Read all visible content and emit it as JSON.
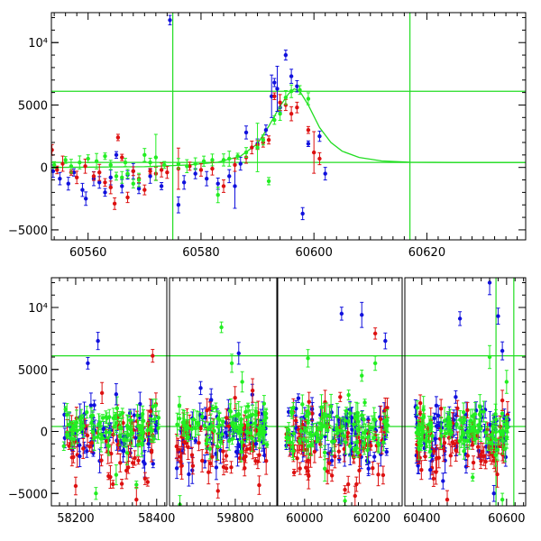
{
  "chart_data": [
    {
      "type": "scatter",
      "panel": "top",
      "xlim": [
        60553.5,
        60637.5
      ],
      "ylim": [
        -5800,
        12400
      ],
      "x_ticks": [
        60560,
        60580,
        60600,
        60620
      ],
      "x_tick_labels": [
        "60560",
        "60580",
        "60600",
        "60620"
      ],
      "y_ticks": [
        -5000,
        0,
        5000,
        10000
      ],
      "y_tick_labels": [
        "−5000",
        "0",
        "5000",
        "10⁴"
      ],
      "reference_lines": {
        "horizontal": [
          6100,
          400
        ],
        "vertical": [
          60575,
          60617
        ]
      },
      "model_curve": {
        "color": "#22dd22",
        "points": [
          [
            60553.5,
            0
          ],
          [
            60570,
            60
          ],
          [
            60578,
            200
          ],
          [
            60583,
            420
          ],
          [
            60587,
            900
          ],
          [
            60590,
            1900
          ],
          [
            60592,
            3300
          ],
          [
            60594,
            4900
          ],
          [
            60595.5,
            5900
          ],
          [
            60596.5,
            6300
          ],
          [
            60597.5,
            6100
          ],
          [
            60599,
            5000
          ],
          [
            60601,
            3200
          ],
          [
            60603,
            2000
          ],
          [
            60605,
            1300
          ],
          [
            60608,
            800
          ],
          [
            60612,
            520
          ],
          [
            60617,
            420
          ],
          [
            60625,
            400
          ],
          [
            60637.5,
            400
          ]
        ]
      },
      "series": [
        {
          "color": "#1010dd",
          "points": [
            [
              60553.8,
              -300
            ],
            [
              60555,
              -900
            ],
            [
              60556.5,
              -1300
            ],
            [
              60557.5,
              -400
            ],
            [
              60559,
              -1800
            ],
            [
              60559.6,
              -2500
            ],
            [
              60561,
              -900
            ],
            [
              60562,
              -1200
            ],
            [
              60563,
              -2000
            ],
            [
              60564,
              -800
            ],
            [
              60565,
              1000
            ],
            [
              60566,
              -1500
            ],
            [
              60567,
              -600
            ],
            [
              60568,
              -300
            ],
            [
              60569,
              -1700
            ],
            [
              60571,
              -700
            ],
            [
              60573,
              -1500
            ],
            [
              60574.5,
              11800
            ],
            [
              60576,
              -3000
            ],
            [
              60577,
              -1200
            ],
            [
              60579,
              -500
            ],
            [
              60581,
              -900
            ],
            [
              60583,
              -1300
            ],
            [
              60585,
              -700
            ],
            [
              60586,
              -1500
            ],
            [
              60587,
              300
            ],
            [
              60588,
              2800
            ],
            [
              60590,
              1900
            ],
            [
              60591.5,
              3000
            ],
            [
              60592.5,
              5700
            ],
            [
              60593,
              6800
            ],
            [
              60593.5,
              6300
            ],
            [
              60594,
              4800
            ],
            [
              60595,
              9000
            ],
            [
              60596,
              7300
            ],
            [
              60597,
              6500
            ],
            [
              60598,
              -3700
            ],
            [
              60599,
              1900
            ],
            [
              60601,
              2500
            ],
            [
              60602,
              -500
            ]
          ]
        },
        {
          "color": "#dd1010",
          "points": [
            [
              60553.6,
              1400
            ],
            [
              60554.5,
              -200
            ],
            [
              60555.5,
              300
            ],
            [
              60557,
              -400
            ],
            [
              60558,
              -800
            ],
            [
              60559.5,
              100
            ],
            [
              60561,
              -700
            ],
            [
              60562,
              -400
            ],
            [
              60563,
              -1200
            ],
            [
              60564,
              -1600
            ],
            [
              60564.7,
              -2900
            ],
            [
              60565.3,
              2400
            ],
            [
              60566,
              800
            ],
            [
              60567,
              -2400
            ],
            [
              60568,
              -300
            ],
            [
              60569,
              -900
            ],
            [
              60570,
              -1800
            ],
            [
              60571,
              -300
            ],
            [
              60572,
              -500
            ],
            [
              60573,
              -200
            ],
            [
              60574,
              -400
            ],
            [
              60576,
              -100
            ],
            [
              60578,
              100
            ],
            [
              60580,
              -200
            ],
            [
              60582,
              -100
            ],
            [
              60584,
              -1500
            ],
            [
              60586,
              200
            ],
            [
              60588,
              800
            ],
            [
              60589,
              1600
            ],
            [
              60590,
              1800
            ],
            [
              60591,
              2000
            ],
            [
              60592,
              2200
            ],
            [
              60593,
              5700
            ],
            [
              60594,
              5200
            ],
            [
              60595,
              5000
            ],
            [
              60596,
              4300
            ],
            [
              60597,
              4800
            ],
            [
              60599,
              3000
            ],
            [
              60600,
              1200
            ],
            [
              60601,
              700
            ]
          ]
        },
        {
          "color": "#22ee22",
          "points": [
            [
              60554,
              200
            ],
            [
              60556,
              600
            ],
            [
              60557,
              100
            ],
            [
              60558.5,
              400
            ],
            [
              60560,
              700
            ],
            [
              60561.5,
              500
            ],
            [
              60563,
              900
            ],
            [
              60564,
              200
            ],
            [
              60565,
              -700
            ],
            [
              60566,
              -800
            ],
            [
              60566.6,
              400
            ],
            [
              60567,
              -500
            ],
            [
              60568,
              -1300
            ],
            [
              60569,
              -1000
            ],
            [
              60570,
              1000
            ],
            [
              60571,
              400
            ],
            [
              60572,
              800
            ],
            [
              60573.5,
              200
            ],
            [
              60576,
              300
            ],
            [
              60577.5,
              100
            ],
            [
              60579,
              300
            ],
            [
              60580.5,
              500
            ],
            [
              60582,
              600
            ],
            [
              60583,
              -2200
            ],
            [
              60584,
              600
            ],
            [
              60585,
              700
            ],
            [
              60586.5,
              900
            ],
            [
              60588,
              1200
            ],
            [
              60590,
              1600
            ],
            [
              60591,
              2200
            ],
            [
              60592,
              -1100
            ],
            [
              60593,
              3800
            ],
            [
              60594,
              4300
            ],
            [
              60595,
              5600
            ],
            [
              60596,
              6100
            ],
            [
              60597.5,
              6200
            ],
            [
              60599,
              5500
            ]
          ]
        }
      ]
    },
    {
      "type": "scatter",
      "panel": "bottom",
      "segments": [
        {
          "xlim": [
            58140,
            58425
          ],
          "x_ticks": [
            58200,
            58400
          ],
          "x_tick_labels": [
            "58200",
            "58400"
          ]
        },
        {
          "xlim": [
            59610,
            59920
          ],
          "x_ticks": [
            59800
          ],
          "x_tick_labels": [
            "59800"
          ]
        },
        {
          "xlim": [
            59920,
            60290
          ],
          "x_ticks": [
            60000,
            60200
          ],
          "x_tick_labels": [
            "60000",
            "60200"
          ]
        },
        {
          "xlim": [
            60360,
            60645
          ],
          "x_ticks": [
            60400,
            60600
          ],
          "x_tick_labels": [
            "60400",
            "60600"
          ]
        }
      ],
      "ylim": [
        -6000,
        12400
      ],
      "y_ticks": [
        -5000,
        0,
        5000,
        10000
      ],
      "y_tick_labels": [
        "−5000",
        "0",
        "5000",
        "10⁴"
      ],
      "reference_lines": {
        "horizontal": [
          6100,
          400
        ],
        "vertical": [
          60575,
          60617
        ]
      },
      "clusters": [
        {
          "x": [
            58170,
            58405
          ],
          "n": [
            60,
            55,
            85
          ]
        },
        {
          "x": [
            59630,
            59895
          ],
          "n": [
            65,
            60,
            85
          ]
        },
        {
          "x": [
            59945,
            60250
          ],
          "n": [
            75,
            70,
            95
          ]
        },
        {
          "x": [
            60385,
            60605
          ],
          "n": [
            75,
            70,
            100
          ]
        }
      ],
      "series": [
        {
          "color": "#1010dd",
          "outliers": [
            [
              58255,
              7300
            ],
            [
              58230,
              5500
            ],
            [
              58210,
              -2000
            ],
            [
              58300,
              3000
            ],
            [
              59810,
              6300
            ],
            [
              59860,
              -1000
            ],
            [
              59700,
              3500
            ],
            [
              60110,
              9500
            ],
            [
              60170,
              9400
            ],
            [
              60240,
              7300
            ],
            [
              60190,
              -3000
            ],
            [
              60490,
              9100
            ],
            [
              60560,
              12000
            ],
            [
              60580,
              9300
            ],
            [
              60570,
              -5000
            ],
            [
              60450,
              -4000
            ],
            [
              60420,
              -3100
            ],
            [
              58380,
              -1000
            ],
            [
              60590,
              6500
            ]
          ]
        },
        {
          "color": "#dd1010",
          "outliers": [
            [
              58265,
              3100
            ],
            [
              58390,
              6100
            ],
            [
              58200,
              -4400
            ],
            [
              58350,
              -5500
            ],
            [
              59750,
              -4800
            ],
            [
              59850,
              3300
            ],
            [
              60210,
              7900
            ],
            [
              60120,
              -4700
            ],
            [
              60150,
              -5200
            ],
            [
              60300,
              -4000
            ],
            [
              60460,
              -5500
            ],
            [
              60590,
              2500
            ],
            [
              60010,
              -3200
            ]
          ]
        },
        {
          "color": "#22ee22",
          "outliers": [
            [
              58300,
              -3500
            ],
            [
              58350,
              -4300
            ],
            [
              58250,
              -5000
            ],
            [
              59760,
              8400
            ],
            [
              59790,
              5500
            ],
            [
              59640,
              -5900
            ],
            [
              59820,
              4000
            ],
            [
              60010,
              5900
            ],
            [
              60060,
              -3000
            ],
            [
              60120,
              -5600
            ],
            [
              60170,
              4500
            ],
            [
              60210,
              5500
            ],
            [
              60520,
              -3700
            ],
            [
              60560,
              6000
            ],
            [
              60600,
              4000
            ],
            [
              60590,
              -5500
            ]
          ]
        }
      ]
    }
  ]
}
